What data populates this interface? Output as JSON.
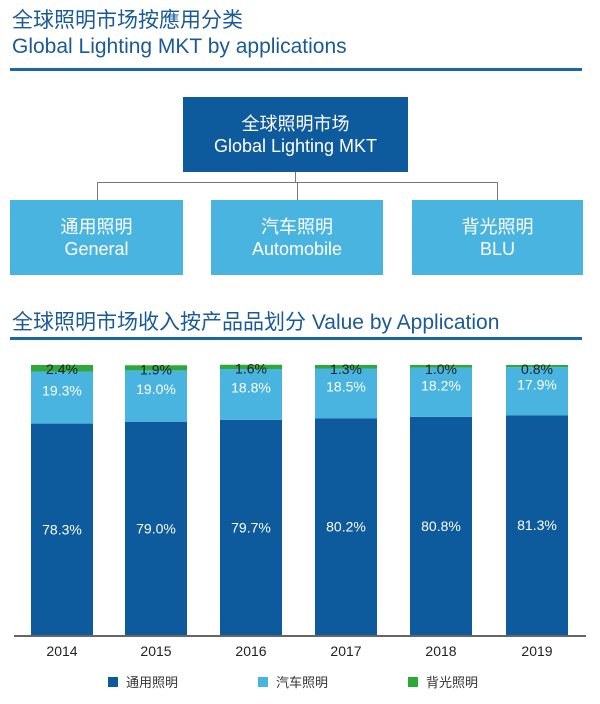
{
  "header": {
    "title_cn": "全球照明市场按應用分类",
    "title_en": "Global Lighting MKT by applications"
  },
  "tree": {
    "root": {
      "cn": "全球照明市场",
      "en": "Global Lighting MKT"
    },
    "children": [
      {
        "cn": "通用照明",
        "en": "General"
      },
      {
        "cn": "汽车照明",
        "en": "Automobile"
      },
      {
        "cn": "背光照明",
        "en": "BLU"
      }
    ]
  },
  "colors": {
    "dark": "#0d5a9c",
    "light": "#4ab4e0",
    "green": "#2ea836",
    "title": "#1a5a96"
  },
  "chart_data": {
    "type": "bar",
    "stacked": true,
    "title": "全球照明市场收入按产品品划分 Value by Application",
    "categories": [
      "2014",
      "2015",
      "2016",
      "2017",
      "2018",
      "2019"
    ],
    "series": [
      {
        "name": "通用照明",
        "color": "#0d5a9c",
        "values": [
          78.3,
          79.0,
          79.7,
          80.2,
          80.8,
          81.3
        ]
      },
      {
        "name": "汽车照明",
        "color": "#4ab4e0",
        "values": [
          19.3,
          19.0,
          18.8,
          18.5,
          18.2,
          17.9
        ]
      },
      {
        "name": "背光照明",
        "color": "#2ea836",
        "values": [
          2.4,
          1.9,
          1.6,
          1.3,
          1.0,
          0.8
        ]
      }
    ],
    "unit": "%",
    "ylim": [
      0,
      100
    ],
    "legend": "bottom"
  }
}
